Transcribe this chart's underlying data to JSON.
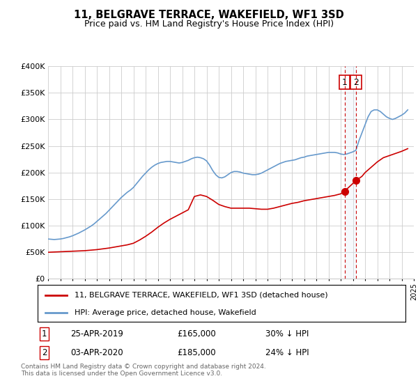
{
  "title": "11, BELGRAVE TERRACE, WAKEFIELD, WF1 3SD",
  "subtitle": "Price paid vs. HM Land Registry's House Price Index (HPI)",
  "legend_label1": "11, BELGRAVE TERRACE, WAKEFIELD, WF1 3SD (detached house)",
  "legend_label2": "HPI: Average price, detached house, Wakefield",
  "annotation1_date": "25-APR-2019",
  "annotation1_price": "£165,000",
  "annotation1_pct": "30% ↓ HPI",
  "annotation2_date": "03-APR-2020",
  "annotation2_price": "£185,000",
  "annotation2_pct": "24% ↓ HPI",
  "footer": "Contains HM Land Registry data © Crown copyright and database right 2024.\nThis data is licensed under the Open Government Licence v3.0.",
  "ylim_min": 0,
  "ylim_max": 400000,
  "yticks": [
    0,
    50000,
    100000,
    150000,
    200000,
    250000,
    300000,
    350000,
    400000
  ],
  "ytick_labels": [
    "£0",
    "£50K",
    "£100K",
    "£150K",
    "£200K",
    "£250K",
    "£300K",
    "£350K",
    "£400K"
  ],
  "color_red": "#cc0000",
  "color_blue": "#6699cc",
  "grid_color": "#cccccc",
  "shade_color": "#dde8f5",
  "sale1_year": 2019.32,
  "sale1_price": 165000,
  "sale2_year": 2020.26,
  "sale2_price": 185000,
  "hpi_years": [
    1995,
    1995.25,
    1995.5,
    1995.75,
    1996,
    1996.25,
    1996.5,
    1996.75,
    1997,
    1997.25,
    1997.5,
    1997.75,
    1998,
    1998.25,
    1998.5,
    1998.75,
    1999,
    1999.25,
    1999.5,
    1999.75,
    2000,
    2000.25,
    2000.5,
    2000.75,
    2001,
    2001.25,
    2001.5,
    2001.75,
    2002,
    2002.25,
    2002.5,
    2002.75,
    2003,
    2003.25,
    2003.5,
    2003.75,
    2004,
    2004.25,
    2004.5,
    2004.75,
    2005,
    2005.25,
    2005.5,
    2005.75,
    2006,
    2006.25,
    2006.5,
    2006.75,
    2007,
    2007.25,
    2007.5,
    2007.75,
    2008,
    2008.25,
    2008.5,
    2008.75,
    2009,
    2009.25,
    2009.5,
    2009.75,
    2010,
    2010.25,
    2010.5,
    2010.75,
    2011,
    2011.25,
    2011.5,
    2011.75,
    2012,
    2012.25,
    2012.5,
    2012.75,
    2013,
    2013.25,
    2013.5,
    2013.75,
    2014,
    2014.25,
    2014.5,
    2014.75,
    2015,
    2015.25,
    2015.5,
    2015.75,
    2016,
    2016.25,
    2016.5,
    2016.75,
    2017,
    2017.25,
    2017.5,
    2017.75,
    2018,
    2018.25,
    2018.5,
    2018.75,
    2019,
    2019.25,
    2019.5,
    2019.75,
    2020,
    2020.25,
    2020.5,
    2020.75,
    2021,
    2021.25,
    2021.5,
    2021.75,
    2022,
    2022.25,
    2022.5,
    2022.75,
    2023,
    2023.25,
    2023.5,
    2023.75,
    2024,
    2024.25,
    2024.5
  ],
  "hpi_values": [
    75000,
    74500,
    74000,
    74500,
    75000,
    76000,
    77500,
    79000,
    81000,
    83500,
    86000,
    89000,
    92000,
    95500,
    99000,
    103000,
    108000,
    113000,
    118000,
    123000,
    129000,
    135000,
    141000,
    147000,
    153000,
    158000,
    163000,
    167000,
    172000,
    179000,
    186000,
    193000,
    199000,
    205000,
    210000,
    214000,
    217000,
    219000,
    220000,
    221000,
    221000,
    220000,
    219000,
    218000,
    219000,
    221000,
    223000,
    226000,
    228000,
    229000,
    228000,
    226000,
    222000,
    214000,
    204000,
    196000,
    191000,
    190000,
    192000,
    196000,
    200000,
    202000,
    202000,
    201000,
    199000,
    198000,
    197000,
    196000,
    196000,
    197000,
    199000,
    202000,
    205000,
    208000,
    211000,
    214000,
    217000,
    219000,
    221000,
    222000,
    223000,
    224000,
    226000,
    228000,
    229000,
    231000,
    232000,
    233000,
    234000,
    235000,
    236000,
    237000,
    238000,
    238000,
    238000,
    237000,
    235000,
    234000,
    235000,
    237000,
    239000,
    242000,
    260000,
    275000,
    290000,
    305000,
    315000,
    318000,
    318000,
    315000,
    310000,
    305000,
    302000,
    300000,
    302000,
    305000,
    308000,
    312000,
    318000
  ],
  "price_years": [
    1995.0,
    1995.5,
    1996.0,
    1996.5,
    1997.0,
    1997.5,
    1998.0,
    1998.5,
    1999.0,
    1999.5,
    2000.0,
    2000.5,
    2001.0,
    2001.5,
    2002.0,
    2002.5,
    2003.0,
    2003.5,
    2004.0,
    2004.5,
    2005.0,
    2005.5,
    2006.0,
    2006.5,
    2007.0,
    2007.5,
    2008.0,
    2008.5,
    2009.0,
    2009.5,
    2010.0,
    2010.5,
    2011.0,
    2011.5,
    2012.0,
    2012.5,
    2013.0,
    2013.5,
    2014.0,
    2014.5,
    2015.0,
    2015.5,
    2016.0,
    2016.5,
    2017.0,
    2017.5,
    2018.0,
    2018.5,
    2019.0,
    2019.32,
    2020.26,
    2020.75,
    2021.0,
    2021.5,
    2022.0,
    2022.5,
    2023.0,
    2023.5,
    2024.0,
    2024.5
  ],
  "price_values": [
    50000,
    50500,
    51000,
    51500,
    52000,
    52500,
    53000,
    54000,
    55000,
    56500,
    58000,
    60000,
    62000,
    64000,
    67000,
    73000,
    80000,
    88000,
    97000,
    105000,
    112000,
    118000,
    124000,
    130000,
    155000,
    158000,
    155000,
    148000,
    140000,
    136000,
    133000,
    133000,
    133000,
    133000,
    132000,
    131000,
    131000,
    133000,
    136000,
    139000,
    142000,
    144000,
    147000,
    149000,
    151000,
    153000,
    155000,
    157000,
    160000,
    165000,
    185000,
    193000,
    200000,
    210000,
    220000,
    228000,
    232000,
    236000,
    240000,
    245000
  ]
}
